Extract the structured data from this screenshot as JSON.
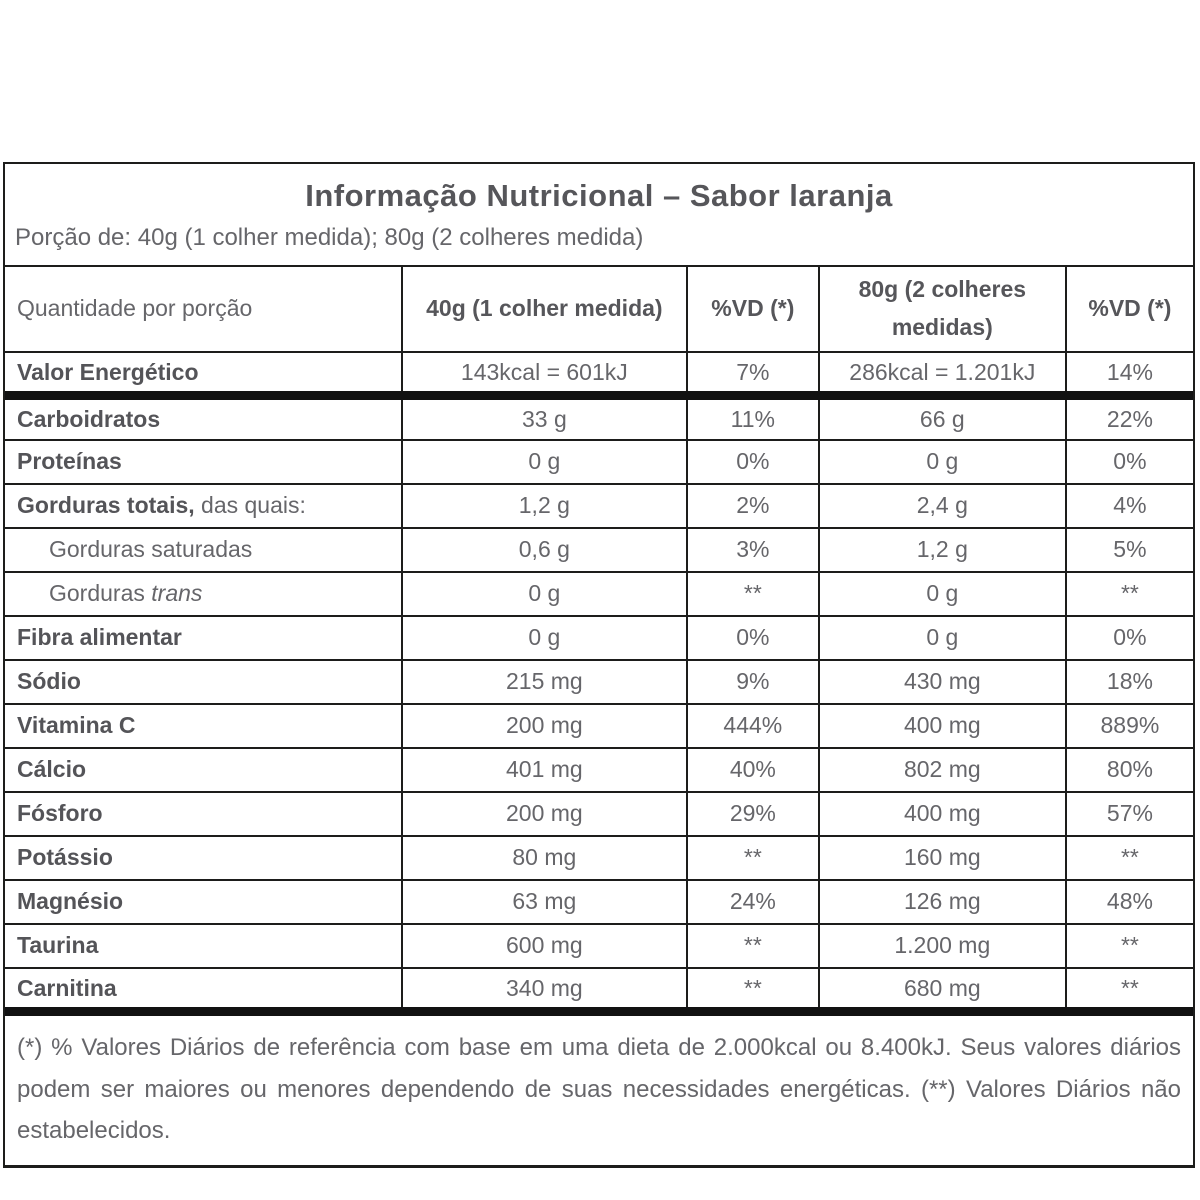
{
  "colors": {
    "border": "#1d1d1b",
    "thick_bar": "#121212",
    "text_strong": "#56565a",
    "text_body": "#66666a",
    "background": "#ffffff"
  },
  "title": "Informação Nutricional – Sabor laranja",
  "serving": "Porção de: 40g (1 colher medida); 80g (2 colheres medida)",
  "table": {
    "columns": [
      "Quantidade por porção",
      "40g (1 colher medida)",
      "%VD (*)",
      "80g (2 colheres medidas)",
      "%VD (*)"
    ],
    "rows": [
      {
        "label": "Valor Energético",
        "bold": true,
        "indent": false,
        "v40": "143kcal = 601kJ",
        "vd40": "7%",
        "v80": "286kcal = 1.201kJ",
        "vd80": "14%",
        "thick_bottom": true
      },
      {
        "label": "Carboidratos",
        "bold": true,
        "indent": false,
        "v40": "33 g",
        "vd40": "11%",
        "v80": "66 g",
        "vd80": "22%",
        "thick_bottom": false
      },
      {
        "label": "Proteínas",
        "bold": true,
        "indent": false,
        "v40": "0 g",
        "vd40": "0%",
        "v80": "0 g",
        "vd80": "0%",
        "thick_bottom": false
      },
      {
        "label": "Gorduras totais,",
        "label_suffix": " das quais:",
        "bold": true,
        "indent": false,
        "v40": "1,2 g",
        "vd40": "2%",
        "v80": "2,4 g",
        "vd80": "4%",
        "thick_bottom": false
      },
      {
        "label": "Gorduras saturadas",
        "bold": false,
        "indent": true,
        "v40": "0,6 g",
        "vd40": "3%",
        "v80": "1,2 g",
        "vd80": "5%",
        "thick_bottom": false
      },
      {
        "label": "Gorduras ",
        "label_italic": "trans",
        "bold": false,
        "indent": true,
        "v40": "0 g",
        "vd40": "**",
        "v80": "0 g",
        "vd80": "**",
        "thick_bottom": false
      },
      {
        "label": "Fibra alimentar",
        "bold": true,
        "indent": false,
        "v40": "0 g",
        "vd40": "0%",
        "v80": "0 g",
        "vd80": "0%",
        "thick_bottom": false
      },
      {
        "label": "Sódio",
        "bold": true,
        "indent": false,
        "v40": "215 mg",
        "vd40": "9%",
        "v80": "430 mg",
        "vd80": "18%",
        "thick_bottom": false
      },
      {
        "label": "Vitamina C",
        "bold": true,
        "indent": false,
        "v40": "200 mg",
        "vd40": "444%",
        "v80": "400 mg",
        "vd80": "889%",
        "thick_bottom": false
      },
      {
        "label": "Cálcio",
        "bold": true,
        "indent": false,
        "v40": "401 mg",
        "vd40": "40%",
        "v80": "802 mg",
        "vd80": "80%",
        "thick_bottom": false
      },
      {
        "label": "Fósforo",
        "bold": true,
        "indent": false,
        "v40": "200 mg",
        "vd40": "29%",
        "v80": "400 mg",
        "vd80": "57%",
        "thick_bottom": false
      },
      {
        "label": "Potássio",
        "bold": true,
        "indent": false,
        "v40": "80 mg",
        "vd40": "**",
        "v80": "160 mg",
        "vd80": "**",
        "thick_bottom": false
      },
      {
        "label": "Magnésio",
        "bold": true,
        "indent": false,
        "v40": "63 mg",
        "vd40": "24%",
        "v80": "126 mg",
        "vd80": "48%",
        "thick_bottom": false
      },
      {
        "label": "Taurina",
        "bold": true,
        "indent": false,
        "v40": "600 mg",
        "vd40": "**",
        "v80": "1.200 mg",
        "vd80": "**",
        "thick_bottom": false
      },
      {
        "label": "Carnitina",
        "bold": true,
        "indent": false,
        "v40": "340 mg",
        "vd40": "**",
        "v80": "680 mg",
        "vd80": "**",
        "thick_bottom": true
      }
    ]
  },
  "footnote": "(*) % Valores Diários de referência com base em uma dieta de 2.000kcal ou 8.400kJ. Seus valores diários podem ser maiores ou menores dependendo de suas necessidades energéticas. (**) Valores Diários não estabelecidos."
}
